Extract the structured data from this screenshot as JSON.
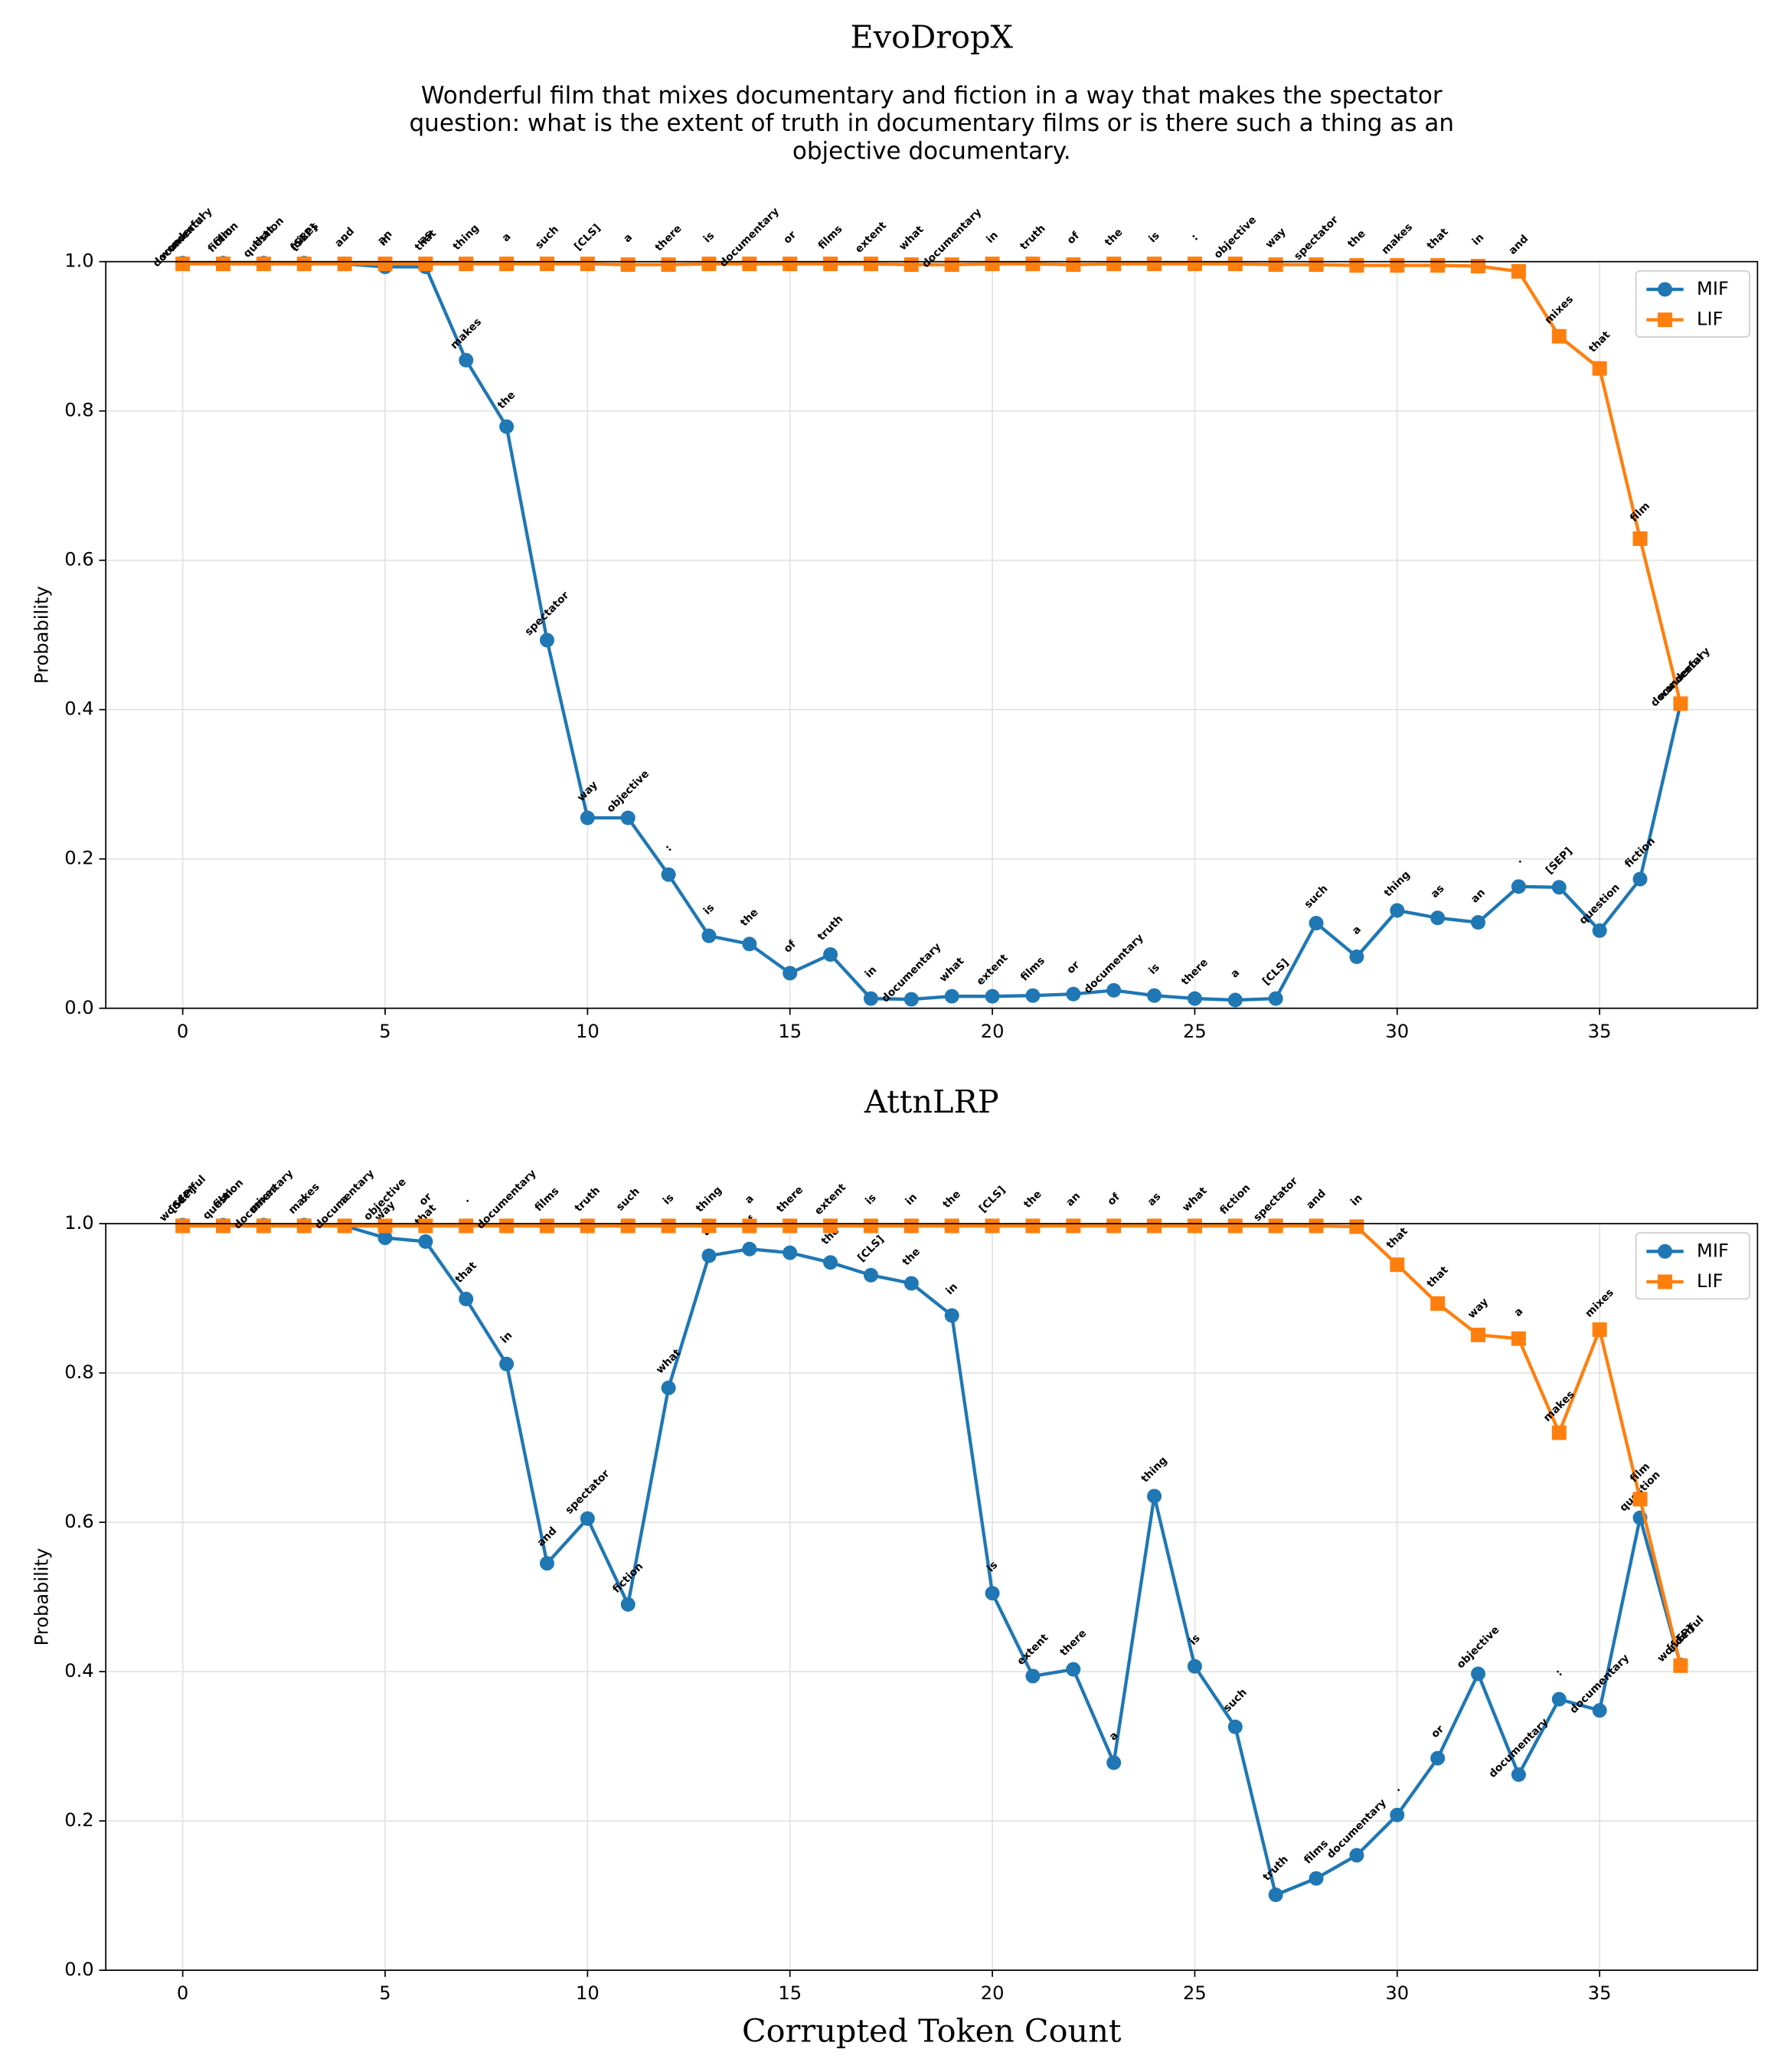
{
  "chart_data": [
    {
      "type": "line",
      "title": "EvoDropX",
      "subtitle": [
        "Wonderful film that mixes documentary and fiction in a way that makes the spectator",
        "question: what is the extent of truth in documentary films or is there such a thing as an",
        "objective documentary."
      ],
      "ylabel": "Probability",
      "x": [
        0,
        1,
        2,
        3,
        4,
        5,
        6,
        7,
        8,
        9,
        10,
        11,
        12,
        13,
        14,
        15,
        16,
        17,
        18,
        19,
        20,
        21,
        22,
        23,
        24,
        25,
        26,
        27,
        28,
        29,
        30,
        31,
        32,
        33,
        34,
        35,
        36,
        37
      ],
      "series": [
        {
          "name": "MIF",
          "color": "#1f77b4",
          "marker": "circle",
          "values": [
            0.998,
            0.998,
            0.998,
            0.998,
            0.997,
            0.993,
            0.993,
            0.868,
            0.779,
            0.493,
            0.255,
            0.255,
            0.179,
            0.097,
            0.086,
            0.047,
            0.072,
            0.013,
            0.012,
            0.016,
            0.016,
            0.017,
            0.019,
            0.024,
            0.017,
            0.013,
            0.011,
            0.013,
            0.114,
            0.069,
            0.131,
            0.121,
            0.115,
            0.163,
            0.162,
            0.104,
            0.173,
            0.408
          ],
          "labels": [
            "wonderful",
            "film",
            "that",
            "mixes",
            "and",
            "in",
            "that",
            "makes",
            "the",
            "spectator",
            "way",
            "objective",
            ":",
            "is",
            "the",
            "of",
            "truth",
            "in",
            "documentary",
            "what",
            "extent",
            "films",
            "or",
            "documentary",
            "is",
            "there",
            "a",
            "[CLS]",
            "such",
            "a",
            "thing",
            "as",
            "an",
            ".",
            "[SEP]",
            "question",
            "fiction",
            "documentary"
          ]
        },
        {
          "name": "LIF",
          "color": "#ff7f0e",
          "marker": "square",
          "values": [
            0.997,
            0.997,
            0.997,
            0.997,
            0.997,
            0.997,
            0.997,
            0.997,
            0.997,
            0.997,
            0.997,
            0.996,
            0.996,
            0.997,
            0.997,
            0.997,
            0.997,
            0.997,
            0.996,
            0.996,
            0.997,
            0.997,
            0.996,
            0.997,
            0.997,
            0.997,
            0.997,
            0.996,
            0.996,
            0.995,
            0.995,
            0.995,
            0.994,
            0.987,
            0.9,
            0.857,
            0.629,
            0.408
          ],
          "labels": [
            "documentary",
            "fiction",
            "question",
            "[SEP]",
            ".",
            "an",
            "as",
            "thing",
            "a",
            "such",
            "[CLS]",
            "a",
            "there",
            "is",
            "documentary",
            "or",
            "films",
            "extent",
            "what",
            "documentary",
            "in",
            "truth",
            "of",
            "the",
            "is",
            ":",
            "objective",
            "way",
            "spectator",
            "the",
            "makes",
            "that",
            "in",
            "and",
            "mixes",
            "that",
            "film",
            "wonderful"
          ]
        }
      ],
      "xlim": [
        -1.9,
        38.9
      ],
      "xticks": [
        0,
        5,
        10,
        15,
        20,
        25,
        30,
        35
      ],
      "ylim": [
        0,
        1
      ],
      "yticks": [
        {
          "value": 0,
          "label": "0.0"
        },
        0.2,
        0.4,
        0.6,
        0.8,
        {
          "value": 1,
          "label": "1.0"
        }
      ],
      "grid": true,
      "legend": "upper right"
    },
    {
      "type": "line",
      "title": "AttnLRP",
      "ylabel": "Probability",
      "xlabel": "Corrupted Token Count",
      "x": [
        0,
        1,
        2,
        3,
        4,
        5,
        6,
        7,
        8,
        9,
        10,
        11,
        12,
        13,
        14,
        15,
        16,
        17,
        18,
        19,
        20,
        21,
        22,
        23,
        24,
        25,
        26,
        27,
        28,
        29,
        30,
        31,
        32,
        33,
        34,
        35,
        36,
        37
      ],
      "series": [
        {
          "name": "MIF",
          "color": "#1f77b4",
          "marker": "circle",
          "values": [
            0.998,
            0.998,
            0.998,
            0.998,
            0.997,
            0.981,
            0.976,
            0.899,
            0.812,
            0.545,
            0.605,
            0.49,
            0.78,
            0.957,
            0.966,
            0.961,
            0.948,
            0.931,
            0.92,
            0.877,
            0.505,
            0.394,
            0.403,
            0.278,
            0.635,
            0.407,
            0.326,
            0.101,
            0.123,
            0.154,
            0.208,
            0.284,
            0.397,
            0.262,
            0.363,
            0.348,
            0.606,
            0.409
          ],
          "labels": [
            "wonderful",
            "film",
            "mixes",
            "makes",
            "a",
            "way",
            "that",
            "that",
            "in",
            "and",
            "spectator",
            "fiction",
            "what",
            "as",
            "of",
            "an",
            "the",
            "[CLS]",
            "the",
            "in",
            "is",
            "extent",
            "there",
            "a",
            "thing",
            "is",
            "such",
            "truth",
            "films",
            "documentary",
            ".",
            "or",
            "objective",
            "documentary",
            ":",
            "documentary",
            "question",
            "[SEP]"
          ]
        },
        {
          "name": "LIF",
          "color": "#ff7f0e",
          "marker": "square",
          "values": [
            0.997,
            0.997,
            0.997,
            0.997,
            0.997,
            0.997,
            0.997,
            0.997,
            0.997,
            0.997,
            0.997,
            0.997,
            0.997,
            0.997,
            0.997,
            0.997,
            0.997,
            0.997,
            0.997,
            0.997,
            0.997,
            0.997,
            0.997,
            0.997,
            0.997,
            0.997,
            0.997,
            0.997,
            0.997,
            0.996,
            0.945,
            0.893,
            0.851,
            0.846,
            0.72,
            0.858,
            0.631,
            0.408
          ],
          "labels": [
            "[SEP]",
            "question",
            "documentary",
            ":",
            "documentary",
            "objective",
            "or",
            ".",
            "documentary",
            "films",
            "truth",
            "such",
            "is",
            "thing",
            "a",
            "there",
            "extent",
            "is",
            "in",
            "the",
            "[CLS]",
            "the",
            "an",
            "of",
            "as",
            "what",
            "fiction",
            "spectator",
            "and",
            "in",
            "that",
            "that",
            "way",
            "a",
            "makes",
            "mixes",
            "film",
            "wonderful"
          ]
        }
      ],
      "xlim": [
        -1.9,
        38.9
      ],
      "xticks": [
        0,
        5,
        10,
        15,
        20,
        25,
        30,
        35
      ],
      "ylim": [
        0,
        1
      ],
      "yticks": [
        {
          "value": 0,
          "label": "0.0"
        },
        0.2,
        0.4,
        0.6,
        0.8,
        {
          "value": 1,
          "label": "1.0"
        }
      ],
      "grid": true,
      "legend": "upper right"
    }
  ]
}
